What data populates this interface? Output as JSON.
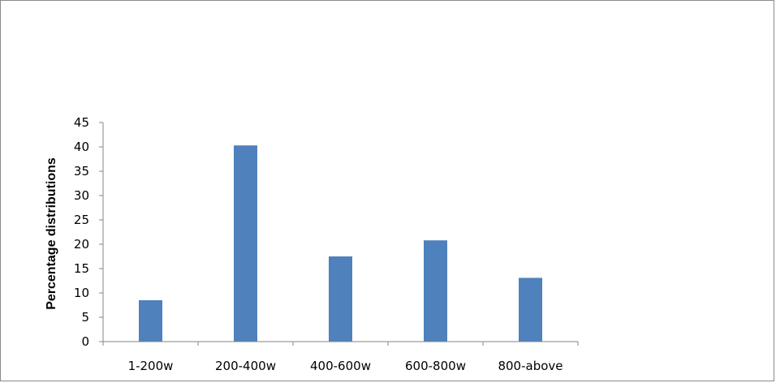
{
  "chart_data": {
    "type": "bar",
    "categories": [
      "1-200w",
      "200-400w",
      "400-600w",
      "600-800w",
      "800-above"
    ],
    "values": [
      8.5,
      40.3,
      17.5,
      20.8,
      13.1
    ],
    "ylabel": "Percentage distributions",
    "xlabel": "",
    "ylim": [
      0,
      45
    ],
    "yticks": [
      0,
      5,
      10,
      15,
      20,
      25,
      30,
      35,
      40,
      45
    ],
    "grid": false,
    "legend": false,
    "bar_color": "#4f81bd",
    "axis_color": "#868686"
  }
}
